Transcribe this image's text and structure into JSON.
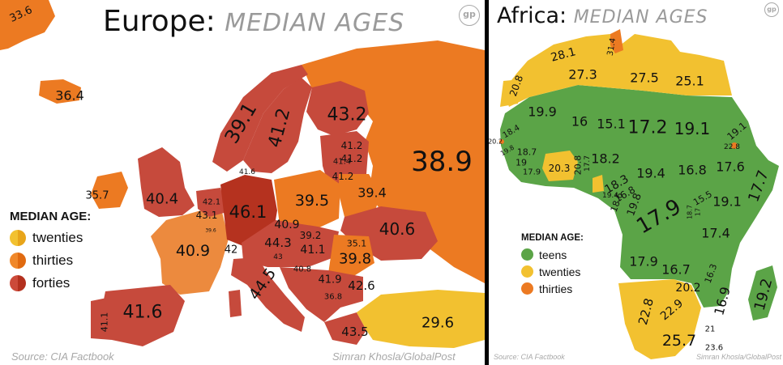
{
  "europe": {
    "title_place": "Europe:",
    "title_sub": "MEDIAN AGES",
    "legend": {
      "title": "MEDIAN AGE:",
      "items": [
        {
          "label": "twenties",
          "color": "#f2c130"
        },
        {
          "label": "thirties",
          "color": "#ec7a22"
        },
        {
          "label": "forties",
          "color": "#c64a3c"
        }
      ]
    },
    "source": "Source: CIA Factbook",
    "author": "Simran Khosla/GlobalPost",
    "logo": "gp",
    "values": [
      "33.6",
      "36.4",
      "39.1",
      "41.2",
      "43.2",
      "41.2",
      "41.2",
      "41.4",
      "41.2",
      "41.6",
      "38.9",
      "35.7",
      "40.4",
      "39.5",
      "39.4",
      "43.1",
      "42.1",
      "39.6",
      "46.1",
      "40.9",
      "39.2",
      "35.1",
      "44.3",
      "41.1",
      "40.6",
      "40.9",
      "42",
      "43",
      "39.8",
      "41.9",
      "40.8",
      "36.8",
      "42.6",
      "44.5",
      "41.6",
      "41.1",
      "43.5",
      "29.6"
    ]
  },
  "africa": {
    "title_place": "Africa:",
    "title_sub": "MEDIAN AGES",
    "legend": {
      "title": "MEDIAN AGE:",
      "items": [
        {
          "label": "teens",
          "color": "#5ba447"
        },
        {
          "label": "twenties",
          "color": "#f2c130"
        },
        {
          "label": "thirties",
          "color": "#ec7a22"
        }
      ]
    },
    "source": "Source: CIA Factbook",
    "author": "Simran Khosla/GlobalPost",
    "logo": "gp",
    "values": [
      "28.1",
      "31.4",
      "27.3",
      "27.5",
      "25.1",
      "20.8",
      "19.9",
      "16",
      "15.1",
      "17.2",
      "19.1",
      "19.1",
      "22.8",
      "18.4",
      "20.2",
      "19.8",
      "18.7",
      "19",
      "17.9",
      "20.3",
      "20.8",
      "17.7",
      "18.2",
      "19.4",
      "16.8",
      "17.6",
      "17.7",
      "18.3",
      "19.4",
      "16.8",
      "18.6",
      "19.8",
      "15.5",
      "17.9",
      "18.7",
      "17",
      "19.1",
      "17.4",
      "17.9",
      "16.7",
      "16.3",
      "20.2",
      "16.9",
      "22.8",
      "22.9",
      "19.2",
      "21",
      "25.7",
      "23.6"
    ]
  }
}
